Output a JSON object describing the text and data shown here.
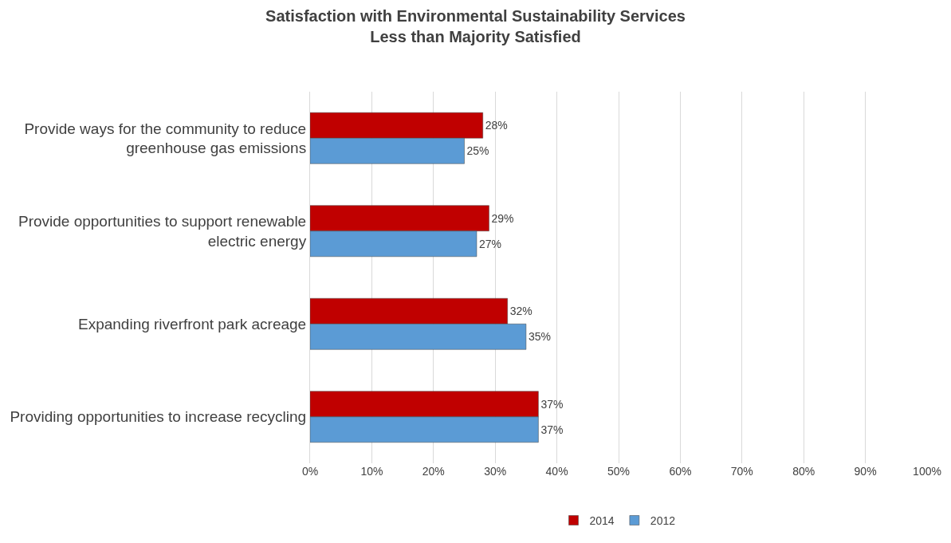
{
  "chart_data": {
    "type": "bar",
    "orientation": "horizontal",
    "title": "Satisfaction with Environmental Sustainability Services",
    "subtitle": "Less than Majority Satisfied",
    "categories": [
      "Provide ways for the community to reduce greenhouse gas emissions",
      "Provide opportunities to support renewable electric energy",
      "Expanding riverfront park acreage",
      "Providing opportunities to increase recycling"
    ],
    "series": [
      {
        "name": "2014",
        "color": "#c00000",
        "values": [
          28,
          29,
          32,
          37
        ],
        "value_labels": [
          "28%",
          "29%",
          "32%",
          "37%"
        ]
      },
      {
        "name": "2012",
        "color": "#5b9bd5",
        "values": [
          25,
          27,
          35,
          37
        ],
        "value_labels": [
          "25%",
          "27%",
          "35%",
          "37%"
        ]
      }
    ],
    "xlim": [
      0,
      100
    ],
    "xticks": [
      {
        "value": 0,
        "label": "0%"
      },
      {
        "value": 10,
        "label": "10%"
      },
      {
        "value": 20,
        "label": "20%"
      },
      {
        "value": 30,
        "label": "30%"
      },
      {
        "value": 40,
        "label": "40%"
      },
      {
        "value": 50,
        "label": "50%"
      },
      {
        "value": 60,
        "label": "60%"
      },
      {
        "value": 70,
        "label": "70%"
      },
      {
        "value": 80,
        "label": "80%"
      },
      {
        "value": 90,
        "label": "90%"
      },
      {
        "value": 100,
        "label": "100%"
      }
    ],
    "grid": "x",
    "legend": "bottom"
  }
}
